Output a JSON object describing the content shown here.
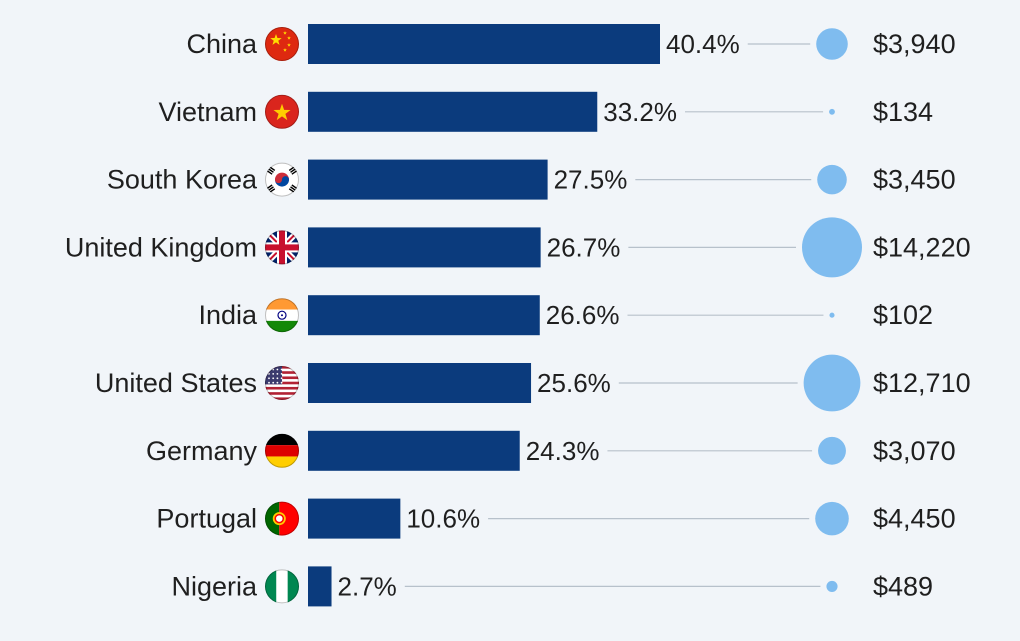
{
  "chart_data": {
    "type": "bar",
    "orientation": "horizontal",
    "title": "",
    "xlabel": "",
    "ylabel": "",
    "xlim": [
      0,
      40.4
    ],
    "grid": false,
    "legend": "none",
    "value_suffix": "%",
    "categories": [
      "China",
      "Vietnam",
      "South Korea",
      "United Kingdom",
      "India",
      "United States",
      "Germany",
      "Portugal",
      "Nigeria"
    ],
    "series": [
      {
        "values": [
          40.4,
          33.2,
          27.5,
          26.7,
          26.6,
          25.6,
          24.3,
          10.6,
          2.7
        ],
        "value_labels": [
          "40.4%",
          "33.2%",
          "27.5%",
          "26.7%",
          "26.6%",
          "25.6%",
          "24.3%",
          "10.6%",
          "2.7%"
        ]
      },
      {
        "values": [
          3940,
          134,
          3450,
          14220,
          102,
          12710,
          3070,
          4450,
          489
        ],
        "value_labels": [
          "$3,940",
          "$134",
          "$3,450",
          "$14,220",
          "$102",
          "$12,710",
          "$3,070",
          "$4,450",
          "$489"
        ],
        "marker": "bubble-area"
      }
    ],
    "flags": [
      "china-flag-icon",
      "vietnam-flag-icon",
      "south-korea-flag-icon",
      "united-kingdom-flag-icon",
      "india-flag-icon",
      "united-states-flag-icon",
      "germany-flag-icon",
      "portugal-flag-icon",
      "nigeria-flag-icon"
    ],
    "colors": {
      "bar": "#0b3b7d",
      "bubble": "#7fbcef",
      "connector": "#b7c1cb",
      "text": "#1f1f1f",
      "background": "#f1f5f9"
    }
  }
}
